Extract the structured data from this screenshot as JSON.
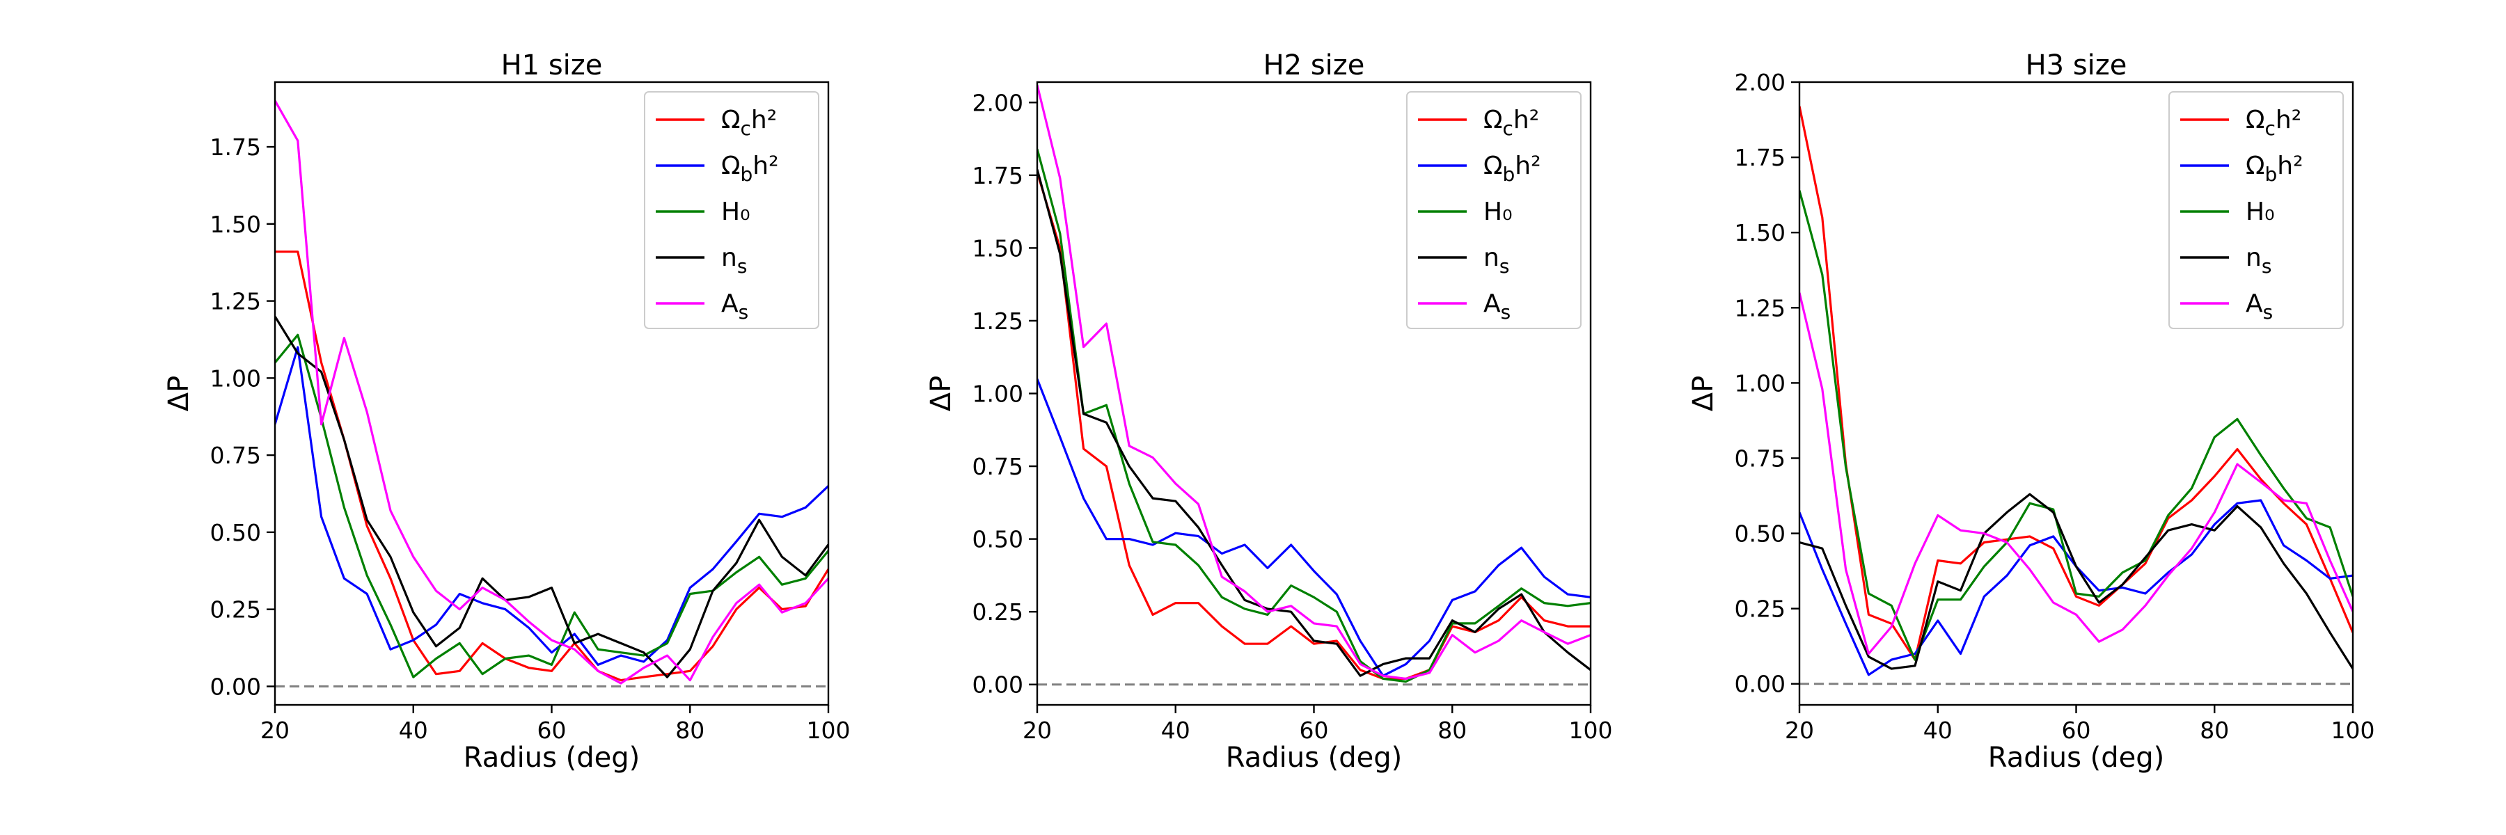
{
  "chart_data": [
    {
      "type": "line",
      "title": "H1 size",
      "xlabel": "Radius (deg)",
      "ylabel": "ΔP",
      "xlim": [
        20,
        100
      ],
      "ylim": [
        -0.06,
        1.96
      ],
      "xticks": [
        20,
        40,
        60,
        80,
        100
      ],
      "xtick_labels": [
        "20",
        "40",
        "60",
        "80",
        "100"
      ],
      "yticks": [
        0.0,
        0.25,
        0.5,
        0.75,
        1.0,
        1.25,
        1.5,
        1.75
      ],
      "ytick_labels": [
        "0.00",
        "0.25",
        "0.50",
        "0.75",
        "1.00",
        "1.25",
        "1.50",
        "1.75"
      ],
      "reference_line": {
        "y": 0.0,
        "style": "dashed",
        "color": "#808080"
      },
      "legend_location": "top-right",
      "x": [
        20,
        23.3,
        26.7,
        30,
        33.3,
        36.7,
        40,
        43.3,
        46.7,
        50,
        53.3,
        56.7,
        60,
        63.3,
        66.7,
        70,
        73.3,
        76.7,
        80,
        83.3,
        86.7,
        90,
        93.3,
        96.7,
        100
      ],
      "series": [
        {
          "name": "Ω_c h²",
          "color": "#ff0000",
          "values": [
            1.41,
            1.41,
            1.05,
            0.8,
            0.52,
            0.35,
            0.15,
            0.04,
            0.05,
            0.14,
            0.09,
            0.06,
            0.05,
            0.14,
            0.05,
            0.02,
            0.03,
            0.04,
            0.05,
            0.13,
            0.25,
            0.32,
            0.25,
            0.26,
            0.38
          ]
        },
        {
          "name": "Ω_b h²",
          "color": "#0000ff",
          "values": [
            0.85,
            1.1,
            0.55,
            0.35,
            0.3,
            0.12,
            0.15,
            0.2,
            0.3,
            0.27,
            0.25,
            0.19,
            0.11,
            0.17,
            0.07,
            0.1,
            0.08,
            0.15,
            0.32,
            0.38,
            0.47,
            0.56,
            0.55,
            0.58,
            0.65
          ]
        },
        {
          "name": "H₀",
          "color": "#008000",
          "values": [
            1.05,
            1.14,
            0.87,
            0.58,
            0.36,
            0.2,
            0.03,
            0.09,
            0.14,
            0.04,
            0.09,
            0.1,
            0.07,
            0.24,
            0.12,
            0.11,
            0.1,
            0.14,
            0.3,
            0.31,
            0.37,
            0.42,
            0.33,
            0.35,
            0.44
          ]
        },
        {
          "name": "n_s",
          "color": "#000000",
          "values": [
            1.2,
            1.08,
            1.02,
            0.8,
            0.54,
            0.42,
            0.24,
            0.13,
            0.19,
            0.35,
            0.28,
            0.29,
            0.32,
            0.14,
            0.17,
            0.14,
            0.11,
            0.03,
            0.12,
            0.31,
            0.4,
            0.54,
            0.42,
            0.36,
            0.46
          ]
        },
        {
          "name": "A_s",
          "color": "#ff00ff",
          "values": [
            1.9,
            1.77,
            0.85,
            1.13,
            0.89,
            0.57,
            0.42,
            0.31,
            0.25,
            0.32,
            0.28,
            0.21,
            0.15,
            0.12,
            0.05,
            0.01,
            0.06,
            0.1,
            0.02,
            0.16,
            0.27,
            0.33,
            0.24,
            0.27,
            0.35
          ]
        }
      ]
    },
    {
      "type": "line",
      "title": "H2 size",
      "xlabel": "Radius (deg)",
      "ylabel": "ΔP",
      "xlim": [
        20,
        100
      ],
      "ylim": [
        -0.07,
        2.07
      ],
      "xticks": [
        20,
        40,
        60,
        80,
        100
      ],
      "xtick_labels": [
        "20",
        "40",
        "60",
        "80",
        "100"
      ],
      "yticks": [
        0.0,
        0.25,
        0.5,
        0.75,
        1.0,
        1.25,
        1.5,
        1.75,
        2.0
      ],
      "ytick_labels": [
        "0.00",
        "0.25",
        "0.50",
        "0.75",
        "1.00",
        "1.25",
        "1.50",
        "1.75",
        "2.00"
      ],
      "reference_line": {
        "y": 0.0,
        "style": "dashed",
        "color": "#808080"
      },
      "legend_location": "top-right",
      "x": [
        20,
        23.3,
        26.7,
        30,
        33.3,
        36.7,
        40,
        43.3,
        46.7,
        50,
        53.3,
        56.7,
        60,
        63.3,
        66.7,
        70,
        73.3,
        76.7,
        80,
        83.3,
        86.7,
        90,
        93.3,
        96.7,
        100
      ],
      "series": [
        {
          "name": "Ω_c h²",
          "color": "#ff0000",
          "values": [
            1.76,
            1.5,
            0.81,
            0.75,
            0.41,
            0.24,
            0.28,
            0.28,
            0.2,
            0.14,
            0.14,
            0.2,
            0.14,
            0.15,
            0.05,
            0.02,
            0.02,
            0.05,
            0.2,
            0.18,
            0.22,
            0.3,
            0.22,
            0.2,
            0.2
          ]
        },
        {
          "name": "Ω_b h²",
          "color": "#0000ff",
          "values": [
            1.05,
            0.85,
            0.64,
            0.5,
            0.5,
            0.48,
            0.52,
            0.51,
            0.45,
            0.48,
            0.4,
            0.48,
            0.39,
            0.31,
            0.15,
            0.03,
            0.07,
            0.15,
            0.29,
            0.32,
            0.41,
            0.47,
            0.37,
            0.31,
            0.3
          ]
        },
        {
          "name": "H₀",
          "color": "#008000",
          "values": [
            1.84,
            1.55,
            0.93,
            0.96,
            0.69,
            0.49,
            0.48,
            0.41,
            0.3,
            0.26,
            0.24,
            0.34,
            0.3,
            0.25,
            0.08,
            0.02,
            0.01,
            0.05,
            0.21,
            0.21,
            0.27,
            0.33,
            0.28,
            0.27,
            0.28
          ]
        },
        {
          "name": "n_s",
          "color": "#000000",
          "values": [
            1.77,
            1.48,
            0.93,
            0.9,
            0.75,
            0.64,
            0.63,
            0.54,
            0.41,
            0.29,
            0.26,
            0.25,
            0.15,
            0.14,
            0.03,
            0.07,
            0.09,
            0.09,
            0.22,
            0.18,
            0.26,
            0.31,
            0.18,
            0.11,
            0.05
          ]
        },
        {
          "name": "A_s",
          "color": "#ff00ff",
          "values": [
            2.06,
            1.74,
            1.16,
            1.24,
            0.82,
            0.78,
            0.69,
            0.62,
            0.37,
            0.32,
            0.25,
            0.27,
            0.21,
            0.2,
            0.07,
            0.03,
            0.02,
            0.04,
            0.17,
            0.11,
            0.15,
            0.22,
            0.18,
            0.14,
            0.17
          ]
        }
      ]
    },
    {
      "type": "line",
      "title": "H3 size",
      "xlabel": "Radius (deg)",
      "ylabel": "ΔP",
      "xlim": [
        20,
        100
      ],
      "ylim": [
        -0.07,
        2.0
      ],
      "xticks": [
        20,
        40,
        60,
        80,
        100
      ],
      "xtick_labels": [
        "20",
        "40",
        "60",
        "80",
        "100"
      ],
      "yticks": [
        0.0,
        0.25,
        0.5,
        0.75,
        1.0,
        1.25,
        1.5,
        1.75,
        2.0
      ],
      "ytick_labels": [
        "0.00",
        "0.25",
        "0.50",
        "0.75",
        "1.00",
        "1.25",
        "1.50",
        "1.75",
        "2.00"
      ],
      "reference_line": {
        "y": 0.0,
        "style": "dashed",
        "color": "#808080"
      },
      "legend_location": "top-right",
      "x": [
        20,
        23.3,
        26.7,
        30,
        33.3,
        36.7,
        40,
        43.3,
        46.7,
        50,
        53.3,
        56.7,
        60,
        63.3,
        66.7,
        70,
        73.3,
        76.7,
        80,
        83.3,
        86.7,
        90,
        93.3,
        96.7,
        100
      ],
      "series": [
        {
          "name": "Ω_c h²",
          "color": "#ff0000",
          "values": [
            1.92,
            1.55,
            0.73,
            0.23,
            0.2,
            0.08,
            0.41,
            0.4,
            0.47,
            0.48,
            0.49,
            0.45,
            0.29,
            0.26,
            0.33,
            0.4,
            0.55,
            0.61,
            0.69,
            0.78,
            0.68,
            0.6,
            0.53,
            0.35,
            0.17
          ]
        },
        {
          "name": "Ω_b h²",
          "color": "#0000ff",
          "values": [
            0.57,
            0.38,
            0.2,
            0.03,
            0.08,
            0.1,
            0.21,
            0.1,
            0.29,
            0.36,
            0.46,
            0.49,
            0.39,
            0.31,
            0.32,
            0.3,
            0.37,
            0.43,
            0.53,
            0.6,
            0.61,
            0.46,
            0.41,
            0.35,
            0.36
          ]
        },
        {
          "name": "H₀",
          "color": "#008000",
          "values": [
            1.64,
            1.36,
            0.72,
            0.3,
            0.26,
            0.08,
            0.28,
            0.28,
            0.39,
            0.47,
            0.6,
            0.58,
            0.3,
            0.29,
            0.37,
            0.41,
            0.56,
            0.65,
            0.82,
            0.88,
            0.76,
            0.65,
            0.55,
            0.52,
            0.29
          ]
        },
        {
          "name": "n_s",
          "color": "#000000",
          "values": [
            0.47,
            0.45,
            0.26,
            0.09,
            0.05,
            0.06,
            0.34,
            0.31,
            0.5,
            0.57,
            0.63,
            0.57,
            0.39,
            0.27,
            0.33,
            0.42,
            0.51,
            0.53,
            0.51,
            0.59,
            0.52,
            0.4,
            0.3,
            0.17,
            0.05
          ]
        },
        {
          "name": "A_s",
          "color": "#ff00ff",
          "values": [
            1.3,
            0.98,
            0.38,
            0.1,
            0.19,
            0.4,
            0.56,
            0.51,
            0.5,
            0.47,
            0.38,
            0.27,
            0.23,
            0.14,
            0.18,
            0.26,
            0.36,
            0.45,
            0.57,
            0.73,
            0.67,
            0.61,
            0.6,
            0.41,
            0.24
          ]
        }
      ]
    }
  ]
}
